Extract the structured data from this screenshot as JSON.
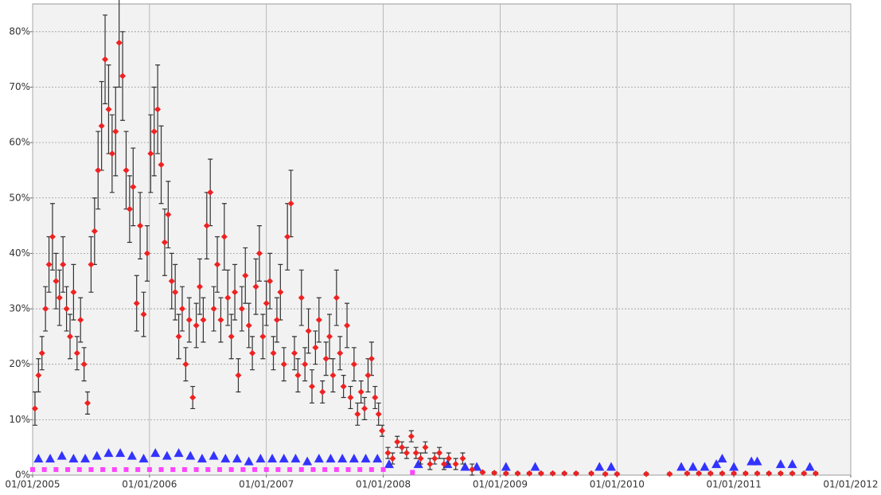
{
  "chart_data": {
    "type": "scatter",
    "xlim": [
      2005,
      2012
    ],
    "ylim": [
      0,
      85
    ],
    "xticks": [
      {
        "value": 2005,
        "label": "01/01/2005"
      },
      {
        "value": 2006,
        "label": "01/01/2006"
      },
      {
        "value": 2007,
        "label": "01/01/2007"
      },
      {
        "value": 2008,
        "label": "01/01/2008"
      },
      {
        "value": 2009,
        "label": "01/01/2009"
      },
      {
        "value": 2010,
        "label": "01/01/2010"
      },
      {
        "value": 2011,
        "label": "01/01/2011"
      },
      {
        "value": 2012,
        "label": "01/01/2012"
      }
    ],
    "yticks": [
      {
        "value": 0,
        "label": "0%"
      },
      {
        "value": 10,
        "label": "10%"
      },
      {
        "value": 20,
        "label": "20%"
      },
      {
        "value": 30,
        "label": "30%"
      },
      {
        "value": 40,
        "label": "40%"
      },
      {
        "value": 50,
        "label": "50%"
      },
      {
        "value": 60,
        "label": "60%"
      },
      {
        "value": 70,
        "label": "70%"
      },
      {
        "value": 80,
        "label": "80%"
      }
    ],
    "grid": true,
    "series": [
      {
        "color": "#3333ff",
        "marker": "triangle",
        "x": [
          2005.05,
          2005.15,
          2005.25,
          2005.35,
          2005.45,
          2005.55,
          2005.65,
          2005.75,
          2005.85,
          2005.95,
          2006.05,
          2006.15,
          2006.25,
          2006.35,
          2006.45,
          2006.55,
          2006.65,
          2006.75,
          2006.85,
          2006.95,
          2007.05,
          2007.15,
          2007.25,
          2007.35,
          2007.45,
          2007.55,
          2007.65,
          2007.75,
          2007.85,
          2007.95,
          2008.05,
          2008.3,
          2008.55,
          2008.7,
          2008.8,
          2009.05,
          2009.3,
          2009.85,
          2009.95,
          2010.55,
          2010.65,
          2010.75,
          2010.85,
          2010.9,
          2011.0,
          2011.15,
          2011.2,
          2011.4,
          2011.5,
          2011.65
        ],
        "values": [
          3,
          3,
          3.5,
          3,
          3,
          3.5,
          4,
          4,
          3.5,
          3,
          4,
          3.5,
          4,
          3.5,
          3,
          3.5,
          3,
          3,
          2.5,
          3,
          3,
          3,
          3,
          2.5,
          3,
          3,
          3,
          3,
          3,
          3,
          2,
          2,
          2,
          1.5,
          1.5,
          1.5,
          1.5,
          1.5,
          1.5,
          1.5,
          1.5,
          1.5,
          2,
          3,
          1.5,
          2.5,
          2.5,
          2,
          2,
          1.5
        ]
      },
      {
        "color": "#ff44ff",
        "marker": "square",
        "x": [
          2005.0,
          2005.1,
          2005.2,
          2005.3,
          2005.4,
          2005.5,
          2005.6,
          2005.7,
          2005.8,
          2005.9,
          2006.0,
          2006.1,
          2006.2,
          2006.3,
          2006.4,
          2006.5,
          2006.6,
          2006.7,
          2006.8,
          2006.9,
          2007.0,
          2007.1,
          2007.2,
          2007.3,
          2007.4,
          2007.5,
          2007.6,
          2007.7,
          2007.8,
          2007.9,
          2008.0,
          2008.25
        ],
        "values": [
          1,
          1,
          1,
          1,
          1,
          1,
          1,
          1,
          1,
          1,
          1,
          1,
          1,
          1,
          1,
          1,
          1,
          1,
          1,
          1,
          1,
          1,
          1,
          1,
          1,
          1,
          1,
          1,
          1,
          1,
          1,
          0.5
        ]
      },
      {
        "color": "#ee2222",
        "marker": "diamond",
        "error_color": "#333333",
        "x": [
          2005.02,
          2005.05,
          2005.08,
          2005.11,
          2005.14,
          2005.17,
          2005.2,
          2005.23,
          2005.26,
          2005.29,
          2005.32,
          2005.35,
          2005.38,
          2005.41,
          2005.44,
          2005.47,
          2005.5,
          2005.53,
          2005.56,
          2005.59,
          2005.62,
          2005.65,
          2005.68,
          2005.71,
          2005.74,
          2005.77,
          2005.8,
          2005.83,
          2005.86,
          2005.89,
          2005.92,
          2005.95,
          2005.98,
          2006.01,
          2006.04,
          2006.07,
          2006.1,
          2006.13,
          2006.16,
          2006.19,
          2006.22,
          2006.25,
          2006.28,
          2006.31,
          2006.34,
          2006.37,
          2006.4,
          2006.43,
          2006.46,
          2006.49,
          2006.52,
          2006.55,
          2006.58,
          2006.61,
          2006.64,
          2006.67,
          2006.7,
          2006.73,
          2006.76,
          2006.79,
          2006.82,
          2006.85,
          2006.88,
          2006.91,
          2006.94,
          2006.97,
          2007.0,
          2007.03,
          2007.06,
          2007.09,
          2007.12,
          2007.15,
          2007.18,
          2007.21,
          2007.24,
          2007.27,
          2007.3,
          2007.33,
          2007.36,
          2007.39,
          2007.42,
          2007.45,
          2007.48,
          2007.51,
          2007.54,
          2007.57,
          2007.6,
          2007.63,
          2007.66,
          2007.69,
          2007.72,
          2007.75,
          2007.78,
          2007.81,
          2007.84,
          2007.87,
          2007.9,
          2007.93,
          2007.96,
          2007.99,
          2008.04,
          2008.08,
          2008.12,
          2008.16,
          2008.2,
          2008.24,
          2008.28,
          2008.32,
          2008.36,
          2008.4,
          2008.44,
          2008.48,
          2008.52,
          2008.56,
          2008.62,
          2008.68,
          2008.76,
          2008.85,
          2008.95,
          2009.05,
          2009.15,
          2009.25,
          2009.35,
          2009.45,
          2009.55,
          2009.65,
          2009.78,
          2009.9,
          2010.0,
          2010.25,
          2010.45,
          2010.6,
          2010.7,
          2010.8,
          2010.9,
          2011.0,
          2011.1,
          2011.2,
          2011.3,
          2011.4,
          2011.5,
          2011.6,
          2011.7
        ],
        "values": [
          12,
          18,
          22,
          30,
          38,
          43,
          35,
          32,
          38,
          30,
          25,
          33,
          22,
          28,
          20,
          13,
          38,
          44,
          55,
          63,
          75,
          66,
          58,
          62,
          78,
          72,
          55,
          48,
          52,
          31,
          45,
          29,
          40,
          58,
          62,
          66,
          56,
          42,
          47,
          35,
          33,
          25,
          30,
          20,
          28,
          14,
          27,
          34,
          28,
          45,
          51,
          30,
          38,
          28,
          43,
          32,
          25,
          33,
          18,
          30,
          36,
          27,
          22,
          34,
          40,
          25,
          31,
          35,
          22,
          28,
          33,
          20,
          43,
          49,
          22,
          18,
          32,
          20,
          26,
          16,
          23,
          28,
          15,
          21,
          25,
          18,
          32,
          22,
          16,
          27,
          14,
          20,
          11,
          15,
          12,
          18,
          21,
          14,
          11,
          8,
          4,
          3,
          6,
          5,
          4,
          7,
          4,
          3,
          5,
          2,
          3,
          4,
          2,
          3,
          2,
          3,
          1,
          0.5,
          0.4,
          0.3,
          0.3,
          0.3,
          0.3,
          0.3,
          0.3,
          0.3,
          0.3,
          0.2,
          0.2,
          0.2,
          0.2,
          0.3,
          0.3,
          0.3,
          0.3,
          0.3,
          0.3,
          0.3,
          0.3,
          0.3,
          0.3,
          0.3,
          0.3
        ],
        "errors": [
          3,
          3,
          3,
          4,
          5,
          6,
          5,
          5,
          5,
          4,
          4,
          5,
          3,
          4,
          3,
          2,
          5,
          6,
          7,
          8,
          8,
          8,
          7,
          8,
          8,
          8,
          7,
          6,
          7,
          5,
          6,
          4,
          5,
          7,
          8,
          8,
          7,
          6,
          6,
          5,
          5,
          4,
          4,
          3,
          4,
          2,
          4,
          5,
          4,
          6,
          6,
          4,
          5,
          4,
          6,
          5,
          4,
          5,
          3,
          4,
          5,
          4,
          3,
          5,
          5,
          4,
          4,
          5,
          3,
          4,
          5,
          3,
          6,
          6,
          3,
          3,
          5,
          3,
          4,
          3,
          3,
          4,
          2,
          3,
          4,
          3,
          5,
          3,
          2,
          4,
          2,
          3,
          2,
          2,
          2,
          3,
          3,
          2,
          2,
          1,
          1,
          1,
          1,
          1,
          1,
          1,
          1,
          1,
          1,
          1,
          1,
          1,
          1,
          1,
          1,
          1,
          1,
          0.2,
          0.2,
          0.2,
          0.2,
          0.2,
          0.2,
          0.2,
          0.2,
          0.2,
          0.2,
          0.2,
          0.2,
          0.2,
          0.2,
          0.2,
          0.2,
          0.2,
          0.2,
          0.2,
          0.2,
          0.2,
          0.2,
          0.2,
          0.2,
          0.2,
          0.2
        ]
      }
    ]
  }
}
